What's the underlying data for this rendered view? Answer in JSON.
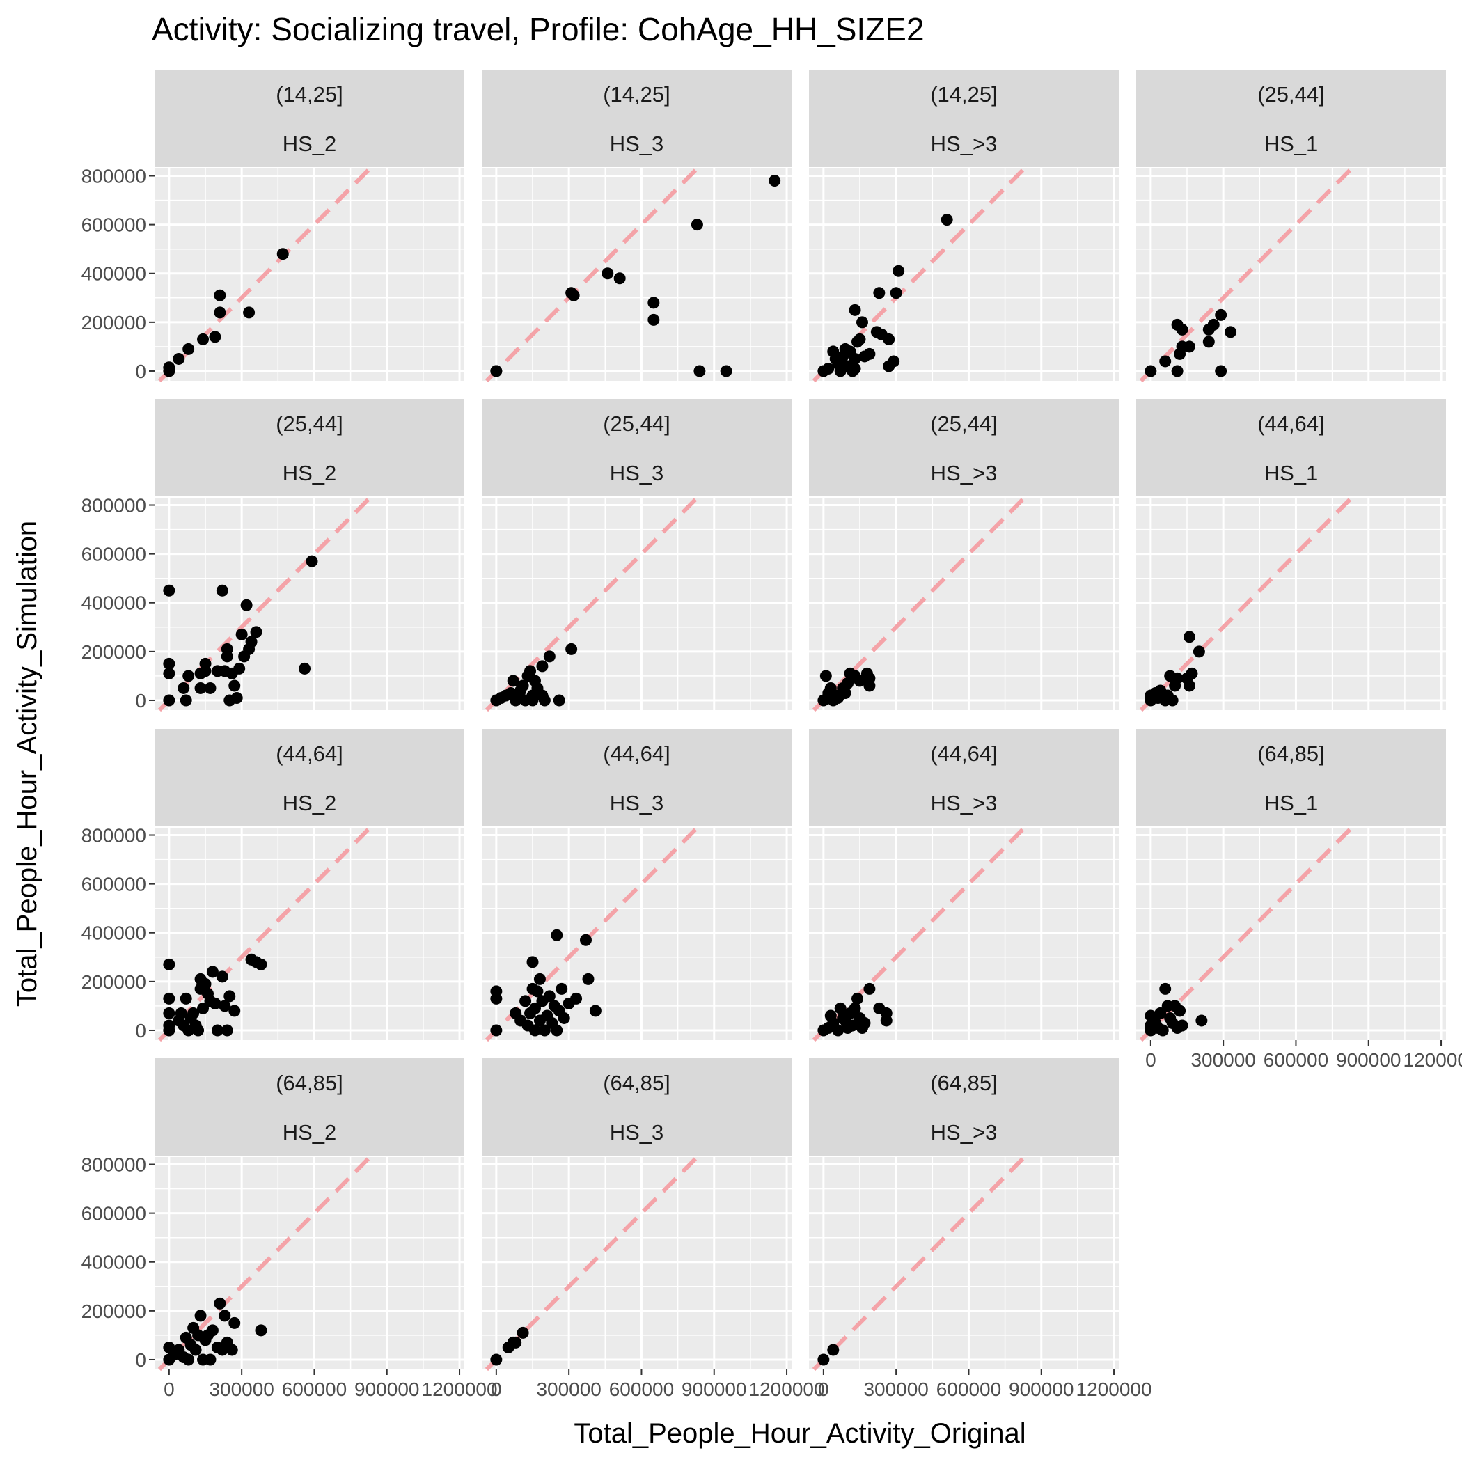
{
  "chart_data": {
    "type": "scatter",
    "title": "Activity: Socializing travel, Profile: CohAge_HH_SIZE2",
    "xlabel": "Total_People_Hour_Activity_Original",
    "ylabel": "Total_People_Hour_Activity_Simulation",
    "xlim": [
      -60000,
      1220000
    ],
    "ylim": [
      -40000,
      830000
    ],
    "x_ticks": [
      0,
      300000,
      600000,
      900000,
      1200000
    ],
    "y_ticks": [
      0,
      200000,
      400000,
      600000,
      800000
    ],
    "reference_line": "y = x",
    "grid": true,
    "colors": {
      "point": "#000000",
      "reference_line": "#f4a3a8",
      "panel_background": "#ebebeb",
      "strip_background": "#d9d9d9",
      "grid": "#ffffff"
    },
    "panels": [
      {
        "age": "(14,25]",
        "hs": "HS_2",
        "points": [
          [
            0,
            0
          ],
          [
            0,
            15000
          ],
          [
            40000,
            50000
          ],
          [
            80000,
            90000
          ],
          [
            140000,
            130000
          ],
          [
            190000,
            140000
          ],
          [
            210000,
            310000
          ],
          [
            210000,
            240000
          ],
          [
            330000,
            240000
          ],
          [
            470000,
            480000
          ]
        ]
      },
      {
        "age": "(14,25]",
        "hs": "HS_3",
        "points": [
          [
            0,
            0
          ],
          [
            0,
            0
          ],
          [
            310000,
            320000
          ],
          [
            320000,
            310000
          ],
          [
            460000,
            400000
          ],
          [
            510000,
            380000
          ],
          [
            650000,
            280000
          ],
          [
            650000,
            210000
          ],
          [
            830000,
            600000
          ],
          [
            840000,
            0
          ],
          [
            950000,
            0
          ],
          [
            1150000,
            780000
          ]
        ]
      },
      {
        "age": "(14,25]",
        "hs": "HS_>3",
        "points": [
          [
            0,
            0
          ],
          [
            20000,
            10000
          ],
          [
            40000,
            80000
          ],
          [
            50000,
            50000
          ],
          [
            60000,
            30000
          ],
          [
            70000,
            0
          ],
          [
            80000,
            60000
          ],
          [
            90000,
            90000
          ],
          [
            100000,
            20000
          ],
          [
            110000,
            80000
          ],
          [
            120000,
            0
          ],
          [
            130000,
            10000
          ],
          [
            130000,
            50000
          ],
          [
            130000,
            250000
          ],
          [
            140000,
            120000
          ],
          [
            150000,
            130000
          ],
          [
            160000,
            200000
          ],
          [
            170000,
            60000
          ],
          [
            190000,
            70000
          ],
          [
            220000,
            160000
          ],
          [
            230000,
            320000
          ],
          [
            240000,
            150000
          ],
          [
            270000,
            20000
          ],
          [
            270000,
            130000
          ],
          [
            290000,
            40000
          ],
          [
            300000,
            320000
          ],
          [
            310000,
            410000
          ],
          [
            510000,
            620000
          ]
        ]
      },
      {
        "age": "(25,44]",
        "hs": "HS_1",
        "points": [
          [
            0,
            0
          ],
          [
            60000,
            40000
          ],
          [
            110000,
            190000
          ],
          [
            110000,
            0
          ],
          [
            120000,
            70000
          ],
          [
            130000,
            100000
          ],
          [
            130000,
            170000
          ],
          [
            160000,
            100000
          ],
          [
            240000,
            120000
          ],
          [
            240000,
            170000
          ],
          [
            260000,
            190000
          ],
          [
            290000,
            230000
          ],
          [
            290000,
            0
          ],
          [
            330000,
            160000
          ]
        ]
      },
      {
        "age": "(25,44]",
        "hs": "HS_2",
        "points": [
          [
            0,
            450000
          ],
          [
            0,
            150000
          ],
          [
            0,
            110000
          ],
          [
            0,
            0
          ],
          [
            60000,
            50000
          ],
          [
            70000,
            0
          ],
          [
            80000,
            100000
          ],
          [
            130000,
            110000
          ],
          [
            130000,
            50000
          ],
          [
            150000,
            150000
          ],
          [
            150000,
            120000
          ],
          [
            170000,
            50000
          ],
          [
            200000,
            120000
          ],
          [
            220000,
            450000
          ],
          [
            230000,
            120000
          ],
          [
            240000,
            180000
          ],
          [
            240000,
            210000
          ],
          [
            250000,
            0
          ],
          [
            260000,
            110000
          ],
          [
            270000,
            60000
          ],
          [
            280000,
            10000
          ],
          [
            290000,
            130000
          ],
          [
            300000,
            270000
          ],
          [
            310000,
            180000
          ],
          [
            320000,
            390000
          ],
          [
            330000,
            210000
          ],
          [
            340000,
            240000
          ],
          [
            360000,
            280000
          ],
          [
            560000,
            130000
          ],
          [
            590000,
            570000
          ]
        ]
      },
      {
        "age": "(25,44]",
        "hs": "HS_3",
        "points": [
          [
            0,
            0
          ],
          [
            20000,
            10000
          ],
          [
            40000,
            20000
          ],
          [
            60000,
            30000
          ],
          [
            70000,
            80000
          ],
          [
            80000,
            0
          ],
          [
            90000,
            10000
          ],
          [
            100000,
            40000
          ],
          [
            110000,
            60000
          ],
          [
            120000,
            0
          ],
          [
            130000,
            100000
          ],
          [
            140000,
            120000
          ],
          [
            150000,
            20000
          ],
          [
            150000,
            0
          ],
          [
            160000,
            80000
          ],
          [
            170000,
            50000
          ],
          [
            190000,
            140000
          ],
          [
            190000,
            20000
          ],
          [
            200000,
            0
          ],
          [
            220000,
            180000
          ],
          [
            260000,
            0
          ],
          [
            310000,
            210000
          ]
        ]
      },
      {
        "age": "(25,44]",
        "hs": "HS_>3",
        "points": [
          [
            0,
            0
          ],
          [
            10000,
            100000
          ],
          [
            20000,
            30000
          ],
          [
            30000,
            50000
          ],
          [
            40000,
            0
          ],
          [
            50000,
            20000
          ],
          [
            60000,
            10000
          ],
          [
            80000,
            50000
          ],
          [
            90000,
            30000
          ],
          [
            100000,
            70000
          ],
          [
            110000,
            110000
          ],
          [
            130000,
            100000
          ],
          [
            150000,
            80000
          ],
          [
            180000,
            110000
          ],
          [
            190000,
            90000
          ],
          [
            190000,
            60000
          ]
        ]
      },
      {
        "age": "(44,64]",
        "hs": "HS_1",
        "points": [
          [
            0,
            0
          ],
          [
            0,
            20000
          ],
          [
            20000,
            30000
          ],
          [
            30000,
            10000
          ],
          [
            40000,
            40000
          ],
          [
            60000,
            0
          ],
          [
            70000,
            20000
          ],
          [
            80000,
            100000
          ],
          [
            90000,
            0
          ],
          [
            100000,
            60000
          ],
          [
            110000,
            90000
          ],
          [
            150000,
            90000
          ],
          [
            160000,
            260000
          ],
          [
            160000,
            60000
          ],
          [
            170000,
            110000
          ],
          [
            200000,
            200000
          ]
        ]
      },
      {
        "age": "(44,64]",
        "hs": "HS_2",
        "points": [
          [
            0,
            270000
          ],
          [
            0,
            130000
          ],
          [
            0,
            70000
          ],
          [
            0,
            20000
          ],
          [
            0,
            0
          ],
          [
            40000,
            40000
          ],
          [
            50000,
            70000
          ],
          [
            60000,
            20000
          ],
          [
            70000,
            130000
          ],
          [
            80000,
            0
          ],
          [
            90000,
            50000
          ],
          [
            100000,
            70000
          ],
          [
            110000,
            20000
          ],
          [
            120000,
            0
          ],
          [
            130000,
            170000
          ],
          [
            130000,
            210000
          ],
          [
            140000,
            90000
          ],
          [
            150000,
            190000
          ],
          [
            160000,
            150000
          ],
          [
            170000,
            120000
          ],
          [
            180000,
            240000
          ],
          [
            190000,
            110000
          ],
          [
            200000,
            0
          ],
          [
            220000,
            220000
          ],
          [
            230000,
            100000
          ],
          [
            240000,
            0
          ],
          [
            250000,
            140000
          ],
          [
            270000,
            80000
          ],
          [
            340000,
            290000
          ],
          [
            360000,
            280000
          ],
          [
            380000,
            270000
          ]
        ]
      },
      {
        "age": "(44,64]",
        "hs": "HS_3",
        "points": [
          [
            0,
            160000
          ],
          [
            0,
            130000
          ],
          [
            0,
            0
          ],
          [
            80000,
            70000
          ],
          [
            100000,
            40000
          ],
          [
            120000,
            120000
          ],
          [
            130000,
            20000
          ],
          [
            140000,
            70000
          ],
          [
            150000,
            170000
          ],
          [
            150000,
            280000
          ],
          [
            160000,
            0
          ],
          [
            160000,
            90000
          ],
          [
            170000,
            160000
          ],
          [
            180000,
            210000
          ],
          [
            180000,
            40000
          ],
          [
            190000,
            120000
          ],
          [
            200000,
            0
          ],
          [
            210000,
            60000
          ],
          [
            220000,
            140000
          ],
          [
            230000,
            30000
          ],
          [
            240000,
            100000
          ],
          [
            250000,
            390000
          ],
          [
            250000,
            0
          ],
          [
            260000,
            80000
          ],
          [
            270000,
            170000
          ],
          [
            280000,
            50000
          ],
          [
            300000,
            110000
          ],
          [
            330000,
            130000
          ],
          [
            370000,
            370000
          ],
          [
            380000,
            210000
          ],
          [
            410000,
            80000
          ]
        ]
      },
      {
        "age": "(44,64]",
        "hs": "HS_>3",
        "points": [
          [
            0,
            0
          ],
          [
            20000,
            10000
          ],
          [
            30000,
            60000
          ],
          [
            40000,
            30000
          ],
          [
            60000,
            0
          ],
          [
            70000,
            90000
          ],
          [
            80000,
            50000
          ],
          [
            90000,
            40000
          ],
          [
            100000,
            10000
          ],
          [
            110000,
            70000
          ],
          [
            120000,
            20000
          ],
          [
            130000,
            90000
          ],
          [
            140000,
            130000
          ],
          [
            150000,
            50000
          ],
          [
            160000,
            10000
          ],
          [
            170000,
            30000
          ],
          [
            190000,
            170000
          ],
          [
            230000,
            90000
          ],
          [
            260000,
            40000
          ],
          [
            260000,
            70000
          ]
        ]
      },
      {
        "age": "(64,85]",
        "hs": "HS_1",
        "points": [
          [
            0,
            0
          ],
          [
            0,
            20000
          ],
          [
            0,
            60000
          ],
          [
            20000,
            30000
          ],
          [
            30000,
            10000
          ],
          [
            40000,
            70000
          ],
          [
            50000,
            0
          ],
          [
            60000,
            170000
          ],
          [
            70000,
            100000
          ],
          [
            80000,
            50000
          ],
          [
            90000,
            30000
          ],
          [
            100000,
            100000
          ],
          [
            110000,
            10000
          ],
          [
            120000,
            80000
          ],
          [
            130000,
            20000
          ],
          [
            210000,
            40000
          ]
        ]
      },
      {
        "age": "(64,85]",
        "hs": "HS_2",
        "points": [
          [
            0,
            0
          ],
          [
            0,
            50000
          ],
          [
            20000,
            20000
          ],
          [
            40000,
            40000
          ],
          [
            60000,
            10000
          ],
          [
            70000,
            90000
          ],
          [
            80000,
            0
          ],
          [
            90000,
            60000
          ],
          [
            100000,
            130000
          ],
          [
            110000,
            40000
          ],
          [
            120000,
            100000
          ],
          [
            130000,
            180000
          ],
          [
            140000,
            0
          ],
          [
            150000,
            80000
          ],
          [
            160000,
            100000
          ],
          [
            170000,
            0
          ],
          [
            180000,
            120000
          ],
          [
            200000,
            50000
          ],
          [
            210000,
            230000
          ],
          [
            220000,
            40000
          ],
          [
            230000,
            180000
          ],
          [
            240000,
            70000
          ],
          [
            260000,
            40000
          ],
          [
            270000,
            150000
          ],
          [
            380000,
            120000
          ]
        ]
      },
      {
        "age": "(64,85]",
        "hs": "HS_3",
        "points": [
          [
            0,
            0
          ],
          [
            50000,
            50000
          ],
          [
            70000,
            70000
          ],
          [
            80000,
            70000
          ],
          [
            110000,
            110000
          ]
        ]
      },
      {
        "age": "(64,85]",
        "hs": "HS_>3",
        "points": [
          [
            0,
            0
          ],
          [
            40000,
            40000
          ]
        ]
      }
    ]
  }
}
